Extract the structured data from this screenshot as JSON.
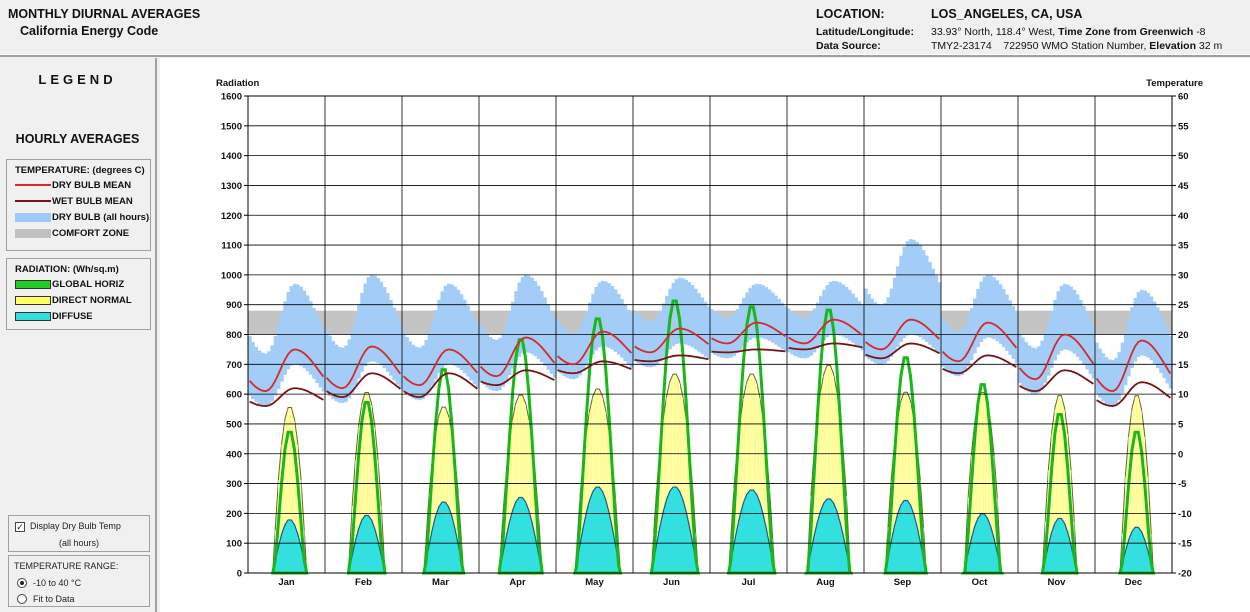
{
  "header": {
    "title": "MONTHLY DIURNAL AVERAGES",
    "subtitle": "California Energy Code",
    "location_label": "LOCATION:",
    "location_value": "LOS_ANGELES, CA, USA",
    "latlon_label": "Latitude/Longitude:",
    "latlon_value": "33.93° North, 118.4° West,",
    "tz_label": "Time Zone from Greenwich",
    "tz_value": "-8",
    "source_label": "Data Source:",
    "source_value": "TMY2-23174",
    "wmo_value": "722950 WMO Station Number,",
    "elev_label": "Elevation",
    "elev_value": "32 m"
  },
  "legend": {
    "title": "LEGEND",
    "hourly": "HOURLY AVERAGES",
    "temp_head": "TEMPERATURE: (degrees C)",
    "temp_items": [
      {
        "label": "DRY BULB MEAN",
        "color": "#d42a2a",
        "kind": "line"
      },
      {
        "label": "WET BULB MEAN",
        "color": "#7a1414",
        "kind": "line"
      },
      {
        "label": "DRY BULB (all hours)",
        "color": "#9ec9f5",
        "kind": "fill"
      },
      {
        "label": "COMFORT ZONE",
        "color": "#c0c0c0",
        "kind": "fill"
      }
    ],
    "rad_head": "RADIATION: (Wh/sq.m)",
    "rad_items": [
      {
        "label": "GLOBAL HORIZ",
        "color": "#22cc22"
      },
      {
        "label": "DIRECT NORMAL",
        "color": "#ffff66"
      },
      {
        "label": "DIFFUSE",
        "color": "#33dddd"
      }
    ]
  },
  "options": {
    "display_drybulb_line1": "Display Dry Bulb Temp",
    "display_drybulb_line2": "(all hours)",
    "display_drybulb_checked": true,
    "check_mark": "✓",
    "range_label": "TEMPERATURE RANGE:",
    "range_options": [
      "-10 to 40 °C",
      "Fit to Data"
    ],
    "range_selected": 0
  },
  "chart_data": {
    "type": "line",
    "ylabel_left": "Radiation",
    "ylabel_right": "Temperature",
    "ylim_left": [
      0,
      1600
    ],
    "ylim_right": [
      -20,
      60
    ],
    "left_ticks": [
      "1600",
      "1500",
      "1400",
      "1300",
      "1200",
      "1100",
      "1000",
      "900",
      "800",
      "700",
      "600",
      "500",
      "400",
      "300",
      "200",
      "100",
      "0"
    ],
    "right_ticks": [
      "60",
      "55",
      "50",
      "45",
      "40",
      "35",
      "30",
      "25",
      "20",
      "15",
      "10",
      "5",
      "0",
      "-5",
      "-10",
      "-15",
      "-20"
    ],
    "months": [
      "Jan",
      "Feb",
      "Mar",
      "Apr",
      "May",
      "Jun",
      "Jul",
      "Aug",
      "Sep",
      "Oct",
      "Nov",
      "Dec"
    ],
    "comfort_zone": [
      20,
      24
    ],
    "global_horiz_peak": [
      480,
      580,
      690,
      790,
      860,
      920,
      900,
      890,
      730,
      640,
      540,
      480
    ],
    "direct_normal_peak": [
      560,
      610,
      560,
      600,
      620,
      670,
      670,
      700,
      610,
      610,
      600,
      600
    ],
    "diffuse_peak": [
      180,
      195,
      240,
      255,
      290,
      290,
      280,
      250,
      245,
      200,
      185,
      155
    ],
    "dry_bulb_mean": {
      "min": [
        10.5,
        11,
        11.5,
        13,
        15,
        17,
        18.5,
        18.5,
        17.5,
        15.5,
        12.5,
        10.5
      ],
      "max": [
        17.5,
        18,
        17.5,
        19.5,
        20.5,
        21,
        22,
        22.5,
        22.5,
        22,
        20,
        19
      ]
    },
    "wet_bulb_mean": {
      "min": [
        8,
        9.5,
        9.5,
        11.5,
        13.5,
        15.5,
        17,
        17.5,
        16,
        13.5,
        10.5,
        8
      ],
      "max": [
        11,
        13.5,
        13.5,
        14,
        15.5,
        16.5,
        17.5,
        18.5,
        18.5,
        16.5,
        14,
        12
      ]
    },
    "dry_bulb_all_hours": {
      "min": [
        7,
        9,
        9,
        11,
        14,
        16,
        18,
        18,
        16,
        13,
        10,
        7
      ],
      "max": [
        26,
        27.5,
        26,
        27.5,
        26.5,
        27,
        26,
        26.5,
        33.5,
        27.5,
        26,
        25
      ]
    },
    "grid": true
  }
}
